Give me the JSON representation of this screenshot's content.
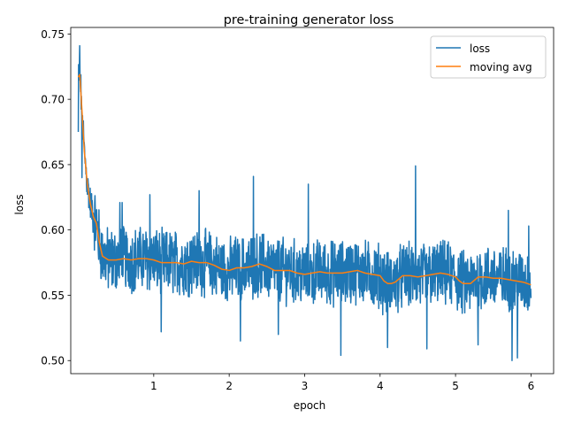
{
  "chart_data": {
    "type": "line",
    "title": "pre-training generator loss",
    "xlabel": "epoch",
    "ylabel": "loss",
    "xlim": [
      -0.1,
      6.3
    ],
    "ylim": [
      0.49,
      0.755
    ],
    "xticks": [
      1,
      2,
      3,
      4,
      5,
      6
    ],
    "xtick_labels": [
      "1",
      "2",
      "3",
      "4",
      "5",
      "6"
    ],
    "yticks": [
      0.5,
      0.55,
      0.6,
      0.65,
      0.7,
      0.75
    ],
    "ytick_labels": [
      "0.50",
      "0.55",
      "0.60",
      "0.65",
      "0.70",
      "0.75"
    ],
    "grid": false,
    "legend_position": "top-right",
    "series": [
      {
        "name": "loss",
        "color": "#1f77b4",
        "x_range": [
          0,
          6
        ],
        "noisy": true,
        "spikes": [
          {
            "x": 0.02,
            "y": 0.741
          },
          {
            "x": 0.0,
            "y": 0.675
          },
          {
            "x": 0.05,
            "y": 0.64
          },
          {
            "x": 0.55,
            "y": 0.621
          },
          {
            "x": 0.58,
            "y": 0.621
          },
          {
            "x": 0.95,
            "y": 0.627
          },
          {
            "x": 1.1,
            "y": 0.522
          },
          {
            "x": 1.6,
            "y": 0.63
          },
          {
            "x": 2.15,
            "y": 0.515
          },
          {
            "x": 2.32,
            "y": 0.641
          },
          {
            "x": 2.65,
            "y": 0.52
          },
          {
            "x": 3.05,
            "y": 0.635
          },
          {
            "x": 3.48,
            "y": 0.504
          },
          {
            "x": 4.1,
            "y": 0.51
          },
          {
            "x": 4.47,
            "y": 0.649
          },
          {
            "x": 4.62,
            "y": 0.509
          },
          {
            "x": 5.3,
            "y": 0.512
          },
          {
            "x": 5.75,
            "y": 0.5
          },
          {
            "x": 5.82,
            "y": 0.502
          },
          {
            "x": 5.7,
            "y": 0.615
          },
          {
            "x": 5.97,
            "y": 0.603
          }
        ]
      },
      {
        "name": "moving avg",
        "color": "#ff7f0e",
        "x": [
          0,
          0.02,
          0.05,
          0.08,
          0.12,
          0.16,
          0.2,
          0.24,
          0.28,
          0.32,
          0.4,
          0.5,
          0.6,
          0.7,
          0.8,
          0.9,
          1.0,
          1.1,
          1.2,
          1.3,
          1.4,
          1.5,
          1.6,
          1.7,
          1.8,
          1.9,
          2.0,
          2.1,
          2.2,
          2.3,
          2.4,
          2.5,
          2.6,
          2.7,
          2.8,
          2.9,
          3.0,
          3.1,
          3.2,
          3.3,
          3.4,
          3.5,
          3.6,
          3.7,
          3.8,
          3.9,
          4.0,
          4.05,
          4.1,
          4.15,
          4.2,
          4.3,
          4.4,
          4.5,
          4.6,
          4.7,
          4.8,
          4.9,
          5.0,
          5.05,
          5.1,
          5.15,
          5.2,
          5.3,
          5.4,
          5.5,
          5.6,
          5.7,
          5.8,
          5.9,
          6.0
        ],
        "y": [
          0.717,
          0.719,
          0.69,
          0.66,
          0.635,
          0.62,
          0.61,
          0.605,
          0.59,
          0.58,
          0.577,
          0.577,
          0.578,
          0.577,
          0.578,
          0.578,
          0.577,
          0.575,
          0.575,
          0.575,
          0.574,
          0.576,
          0.575,
          0.575,
          0.573,
          0.57,
          0.569,
          0.571,
          0.571,
          0.572,
          0.574,
          0.572,
          0.569,
          0.569,
          0.569,
          0.567,
          0.566,
          0.567,
          0.568,
          0.567,
          0.567,
          0.567,
          0.568,
          0.569,
          0.567,
          0.566,
          0.565,
          0.561,
          0.559,
          0.559,
          0.56,
          0.565,
          0.565,
          0.564,
          0.565,
          0.566,
          0.567,
          0.566,
          0.564,
          0.561,
          0.559,
          0.559,
          0.559,
          0.564,
          0.564,
          0.563,
          0.563,
          0.562,
          0.561,
          0.56,
          0.558
        ]
      }
    ]
  }
}
